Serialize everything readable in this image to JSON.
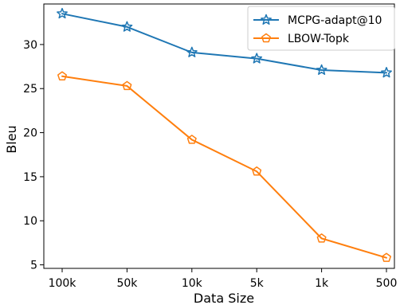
{
  "chart_data": {
    "type": "line",
    "title": "",
    "xlabel": "Data Size",
    "ylabel": "Bleu",
    "categories": [
      "100k",
      "50k",
      "10k",
      "5k",
      "1k",
      "500"
    ],
    "ylim": [
      4.6,
      34.6
    ],
    "yticks": [
      5,
      10,
      15,
      20,
      25,
      30
    ],
    "grid": false,
    "legend_position": "top-right",
    "series": [
      {
        "name": "MCPG-adapt@10",
        "color": "#1f77b4",
        "marker": "star",
        "values": [
          33.5,
          32.0,
          29.1,
          28.4,
          27.1,
          26.8
        ]
      },
      {
        "name": "LBOW-Topk",
        "color": "#ff7f0e",
        "marker": "pentagon",
        "values": [
          26.4,
          25.3,
          19.2,
          15.6,
          8.0,
          5.8
        ]
      }
    ]
  }
}
